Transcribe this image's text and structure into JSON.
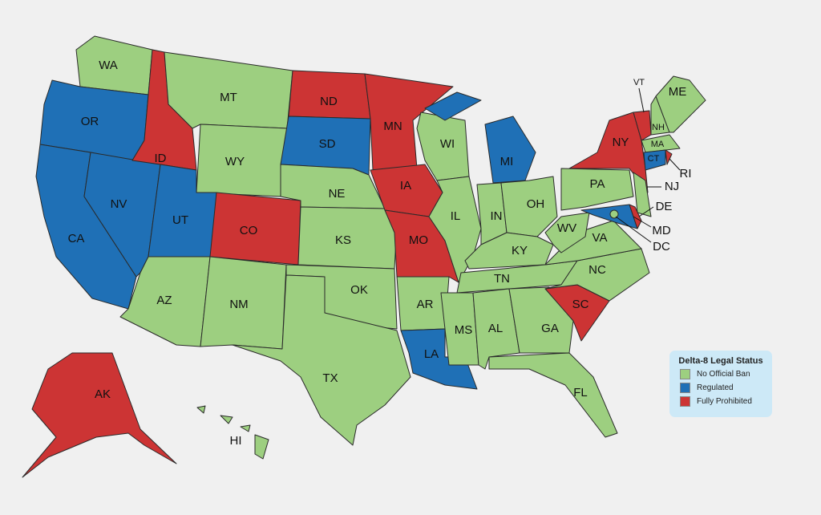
{
  "colors": {
    "no_ban": "#9dcf80",
    "regulated": "#1f70b6",
    "prohibited": "#cc3434"
  },
  "legend": {
    "title": "Delta-8 Legal Status",
    "items": [
      {
        "key": "no_ban",
        "label": "No Official Ban"
      },
      {
        "key": "regulated",
        "label": "Regulated"
      },
      {
        "key": "prohibited",
        "label": "Fully Prohibited"
      }
    ]
  },
  "states": {
    "WA": "no_ban",
    "OR": "regulated",
    "CA": "regulated",
    "NV": "regulated",
    "ID": "prohibited",
    "MT": "no_ban",
    "WY": "no_ban",
    "UT": "regulated",
    "CO": "prohibited",
    "AZ": "no_ban",
    "NM": "no_ban",
    "ND": "prohibited",
    "SD": "regulated",
    "NE": "no_ban",
    "KS": "no_ban",
    "OK": "no_ban",
    "TX": "no_ban",
    "MN": "prohibited",
    "IA": "prohibited",
    "MO": "prohibited",
    "AR": "no_ban",
    "LA": "regulated",
    "WI": "no_ban",
    "IL": "no_ban",
    "MI": "regulated",
    "IN": "no_ban",
    "OH": "no_ban",
    "KY": "no_ban",
    "TN": "no_ban",
    "MS": "no_ban",
    "AL": "no_ban",
    "GA": "no_ban",
    "FL": "no_ban",
    "SC": "prohibited",
    "NC": "no_ban",
    "VA": "no_ban",
    "WV": "no_ban",
    "PA": "no_ban",
    "NY": "prohibited",
    "NJ": "no_ban",
    "DE": "prohibited",
    "MD": "regulated",
    "DC": "no_ban",
    "VT": "prohibited",
    "NH": "no_ban",
    "ME": "no_ban",
    "MA": "no_ban",
    "CT": "regulated",
    "RI": "prohibited",
    "AK": "prohibited",
    "HI": "no_ban"
  }
}
